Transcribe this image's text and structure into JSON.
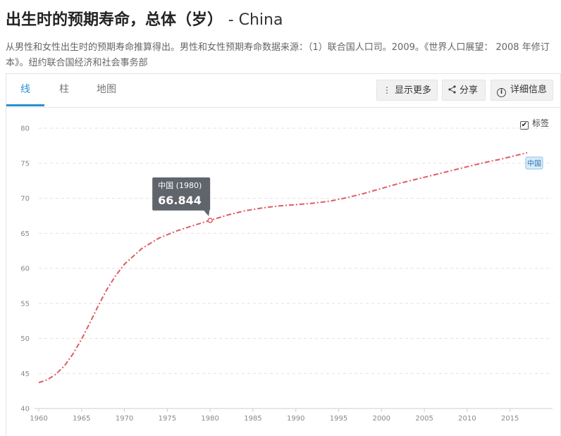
{
  "header": {
    "title": "出生时的预期寿命，总体（岁）",
    "country": "- China",
    "subtitle": "从男性和女性出生时的预期寿命推算得出。男性和女性预期寿命数据来源：（1）联合国人口司。2009。《世界人口展望： 2008 年修订本》。纽约联合国经济和社会事务部"
  },
  "tabs": [
    {
      "label": "线",
      "active": true
    },
    {
      "label": "柱",
      "active": false
    },
    {
      "label": "地图",
      "active": false
    }
  ],
  "toolbar": {
    "more_label": "显示更多",
    "share_label": "分享",
    "details_label": "详细信息",
    "more_icon": "vertical-dots-icon",
    "share_icon": "share-icon",
    "details_icon": "info-icon"
  },
  "labels_toggle": {
    "label": "标签",
    "checked": true
  },
  "chart_data": {
    "type": "line",
    "title": "",
    "xlabel": "",
    "ylabel": "",
    "xlim": [
      1960,
      2017
    ],
    "ylim": [
      40,
      80
    ],
    "x_ticks": [
      1960,
      1965,
      1970,
      1975,
      1980,
      1985,
      1990,
      1995,
      2000,
      2005,
      2010,
      2015
    ],
    "y_ticks": [
      40,
      45,
      50,
      55,
      60,
      65,
      70,
      75,
      80
    ],
    "grid": true,
    "line_color": "#e05a63",
    "series": [
      {
        "name": "中国",
        "x": [
          1960,
          1961,
          1962,
          1963,
          1964,
          1965,
          1966,
          1967,
          1968,
          1969,
          1970,
          1972,
          1974,
          1976,
          1978,
          1980,
          1982,
          1984,
          1986,
          1988,
          1990,
          1992,
          1994,
          1996,
          1998,
          2000,
          2002,
          2004,
          2006,
          2008,
          2010,
          2012,
          2014,
          2016,
          2017
        ],
        "values": [
          43.7,
          44.1,
          44.9,
          46.1,
          47.8,
          49.9,
          52.3,
          54.8,
          57.1,
          59.0,
          60.6,
          62.8,
          64.3,
          65.3,
          66.1,
          66.844,
          67.6,
          68.2,
          68.6,
          68.9,
          69.1,
          69.3,
          69.6,
          70.1,
          70.7,
          71.4,
          72.1,
          72.7,
          73.3,
          73.9,
          74.5,
          75.1,
          75.6,
          76.2,
          76.5
        ]
      }
    ],
    "tooltip": {
      "label": "中国 (1980)",
      "value": "66.844",
      "x": 1980,
      "y": 66.844
    },
    "end_label": "中国"
  }
}
